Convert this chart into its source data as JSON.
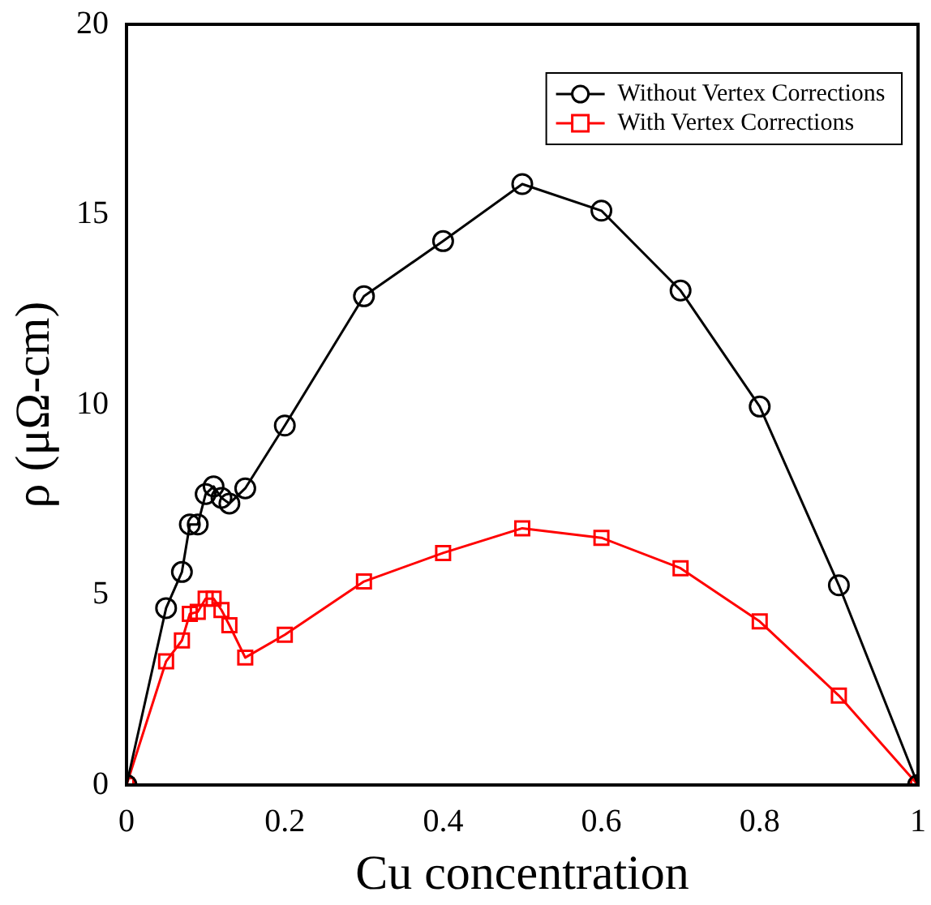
{
  "chart_data": {
    "type": "line",
    "xlabel": "Cu concentration",
    "ylabel": "ρ (μΩ-cm)",
    "x": [
      0,
      0.05,
      0.07,
      0.08,
      0.09,
      0.1,
      0.11,
      0.12,
      0.13,
      0.15,
      0.2,
      0.3,
      0.4,
      0.5,
      0.6,
      0.7,
      0.8,
      0.9,
      1
    ],
    "series": [
      {
        "name": "Without Vertex Corrections",
        "color": "#000000",
        "marker": "circle",
        "values": [
          0,
          4.65,
          5.6,
          6.85,
          6.85,
          7.65,
          7.85,
          7.55,
          7.4,
          7.8,
          9.45,
          12.85,
          14.3,
          15.8,
          15.1,
          13.0,
          9.95,
          5.25,
          0
        ]
      },
      {
        "name": "With Vertex Corrections",
        "color": "#ff0000",
        "marker": "square",
        "values": [
          0,
          3.25,
          3.8,
          4.5,
          4.55,
          4.9,
          4.9,
          4.6,
          4.2,
          3.35,
          3.95,
          5.35,
          6.1,
          6.75,
          6.5,
          5.7,
          4.3,
          2.35,
          0
        ]
      }
    ],
    "xlim": [
      0,
      1
    ],
    "xticks": [
      0,
      0.2,
      0.4,
      0.6,
      0.8,
      1
    ],
    "ylim": [
      0,
      20
    ],
    "yticks": [
      0,
      5,
      10,
      15,
      20
    ],
    "grid": false,
    "legend": "top right"
  }
}
